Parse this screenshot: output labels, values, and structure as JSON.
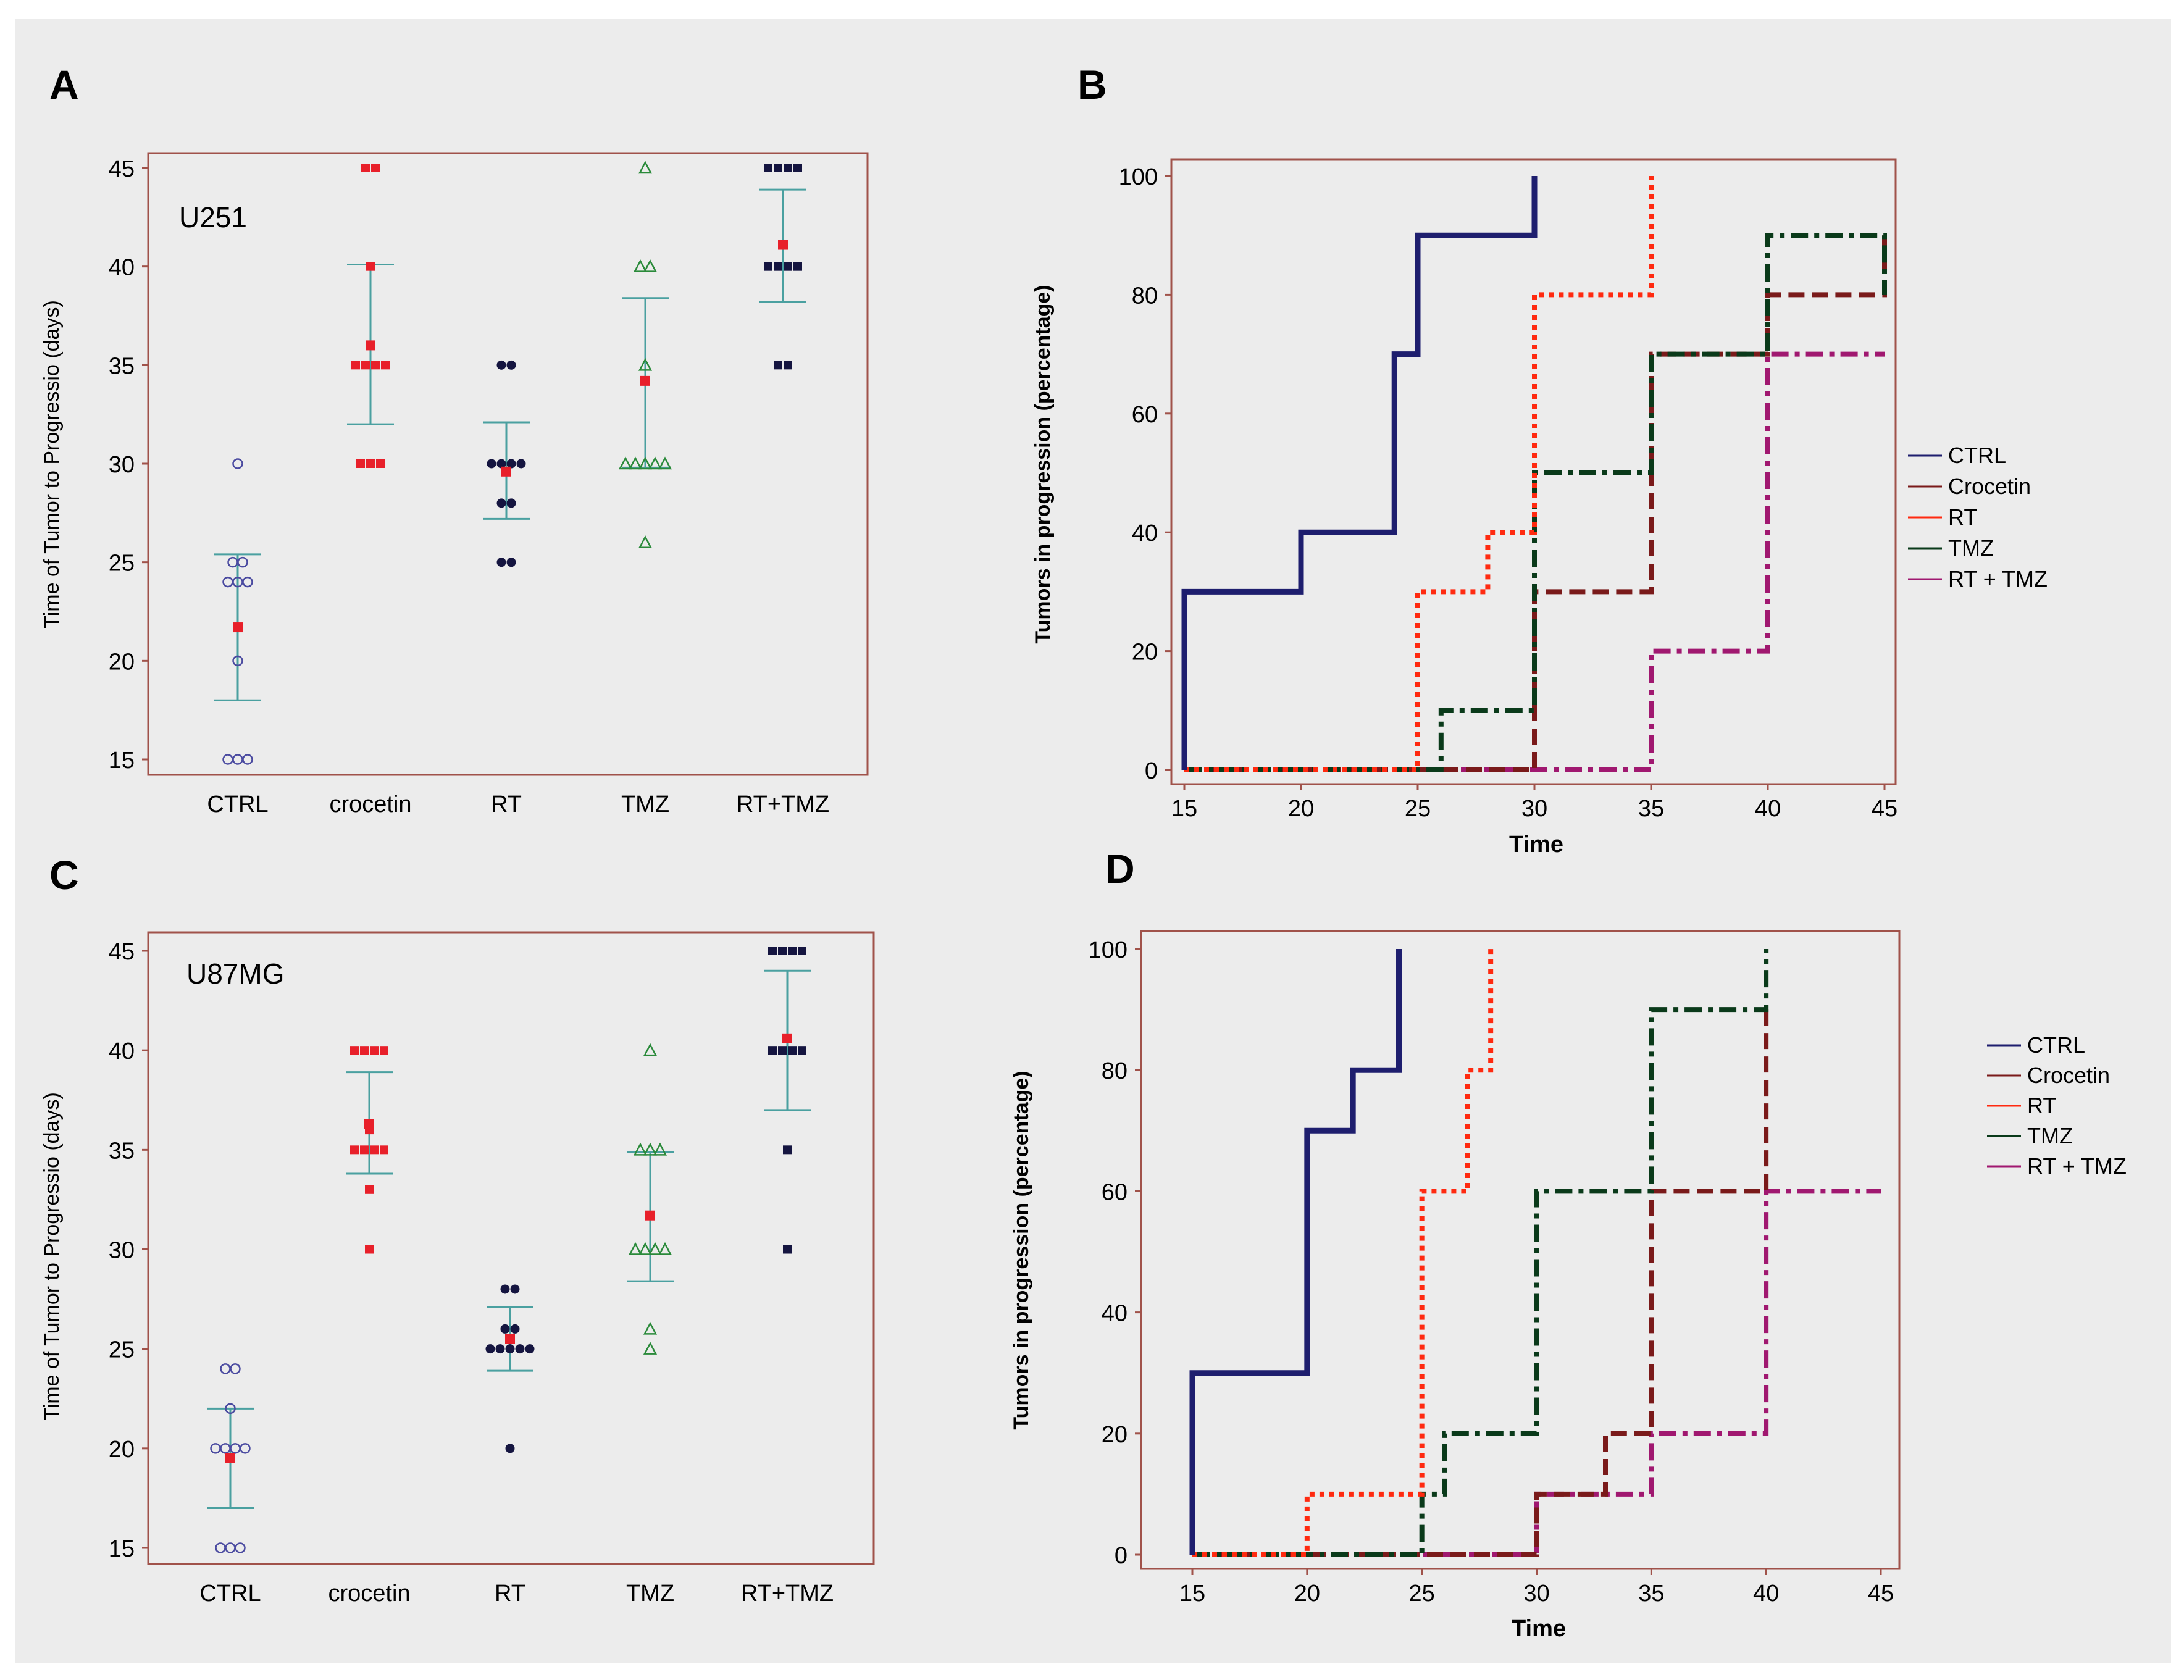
{
  "colors": {
    "background": "#ececec",
    "plot_border": "#a0524a",
    "errorbar": "#4aa0a0",
    "mean_marker": "#e8202a",
    "ctrl": "#1e1e6e",
    "crocetin": "#7a1a1a",
    "rt": "#ff2a10",
    "tmz": "#0a3a1a",
    "rt_tmz": "#a01870",
    "scatter_ctrl": "#4a4aa0",
    "scatter_crocetin": "#e8202a",
    "scatter_rt": "#151540",
    "scatter_tmz": "#2a8a3a",
    "scatter_rttmz": "#151540"
  },
  "panels": {
    "A": "A",
    "B": "B",
    "C": "C",
    "D": "D"
  },
  "chart_data": [
    {
      "id": "A",
      "type": "scatter",
      "label": "U251",
      "ylabel": "Time of Tumor to Progressio (days)",
      "xlabel": "",
      "categories": [
        "CTRL",
        "crocetin",
        "RT",
        "TMZ",
        "RT+TMZ"
      ],
      "ylim": [
        15,
        45
      ],
      "yticks": [
        15,
        20,
        25,
        30,
        35,
        40,
        45
      ],
      "groups": [
        {
          "name": "CTRL",
          "marker": "circle-open",
          "color": "#4a4aa0",
          "points": [
            15,
            15,
            15,
            20,
            24,
            24,
            24,
            25,
            25,
            30
          ],
          "mean": 21.7,
          "sd_low": 18.0,
          "sd_high": 25.4
        },
        {
          "name": "crocetin",
          "marker": "square",
          "color": "#e8202a",
          "points": [
            30,
            30,
            30,
            35,
            35,
            35,
            35,
            36,
            40,
            45,
            45
          ],
          "mean": 36.0,
          "sd_low": 32.0,
          "sd_high": 40.1
        },
        {
          "name": "RT",
          "marker": "circle",
          "color": "#151540",
          "points": [
            25,
            25,
            28,
            28,
            30,
            30,
            30,
            30,
            35,
            35
          ],
          "mean": 29.6,
          "sd_low": 27.2,
          "sd_high": 32.1
        },
        {
          "name": "TMZ",
          "marker": "triangle-open",
          "color": "#2a8a3a",
          "points": [
            26,
            30,
            30,
            30,
            30,
            30,
            35,
            40,
            40,
            45
          ],
          "mean": 34.2,
          "sd_low": 29.8,
          "sd_high": 38.4
        },
        {
          "name": "RT+TMZ",
          "marker": "square",
          "color": "#151540",
          "points": [
            35,
            35,
            40,
            40,
            40,
            40,
            45,
            45,
            45,
            45
          ],
          "mean": 41.1,
          "sd_low": 38.2,
          "sd_high": 43.9
        }
      ]
    },
    {
      "id": "B",
      "type": "line",
      "xlabel": "Time",
      "ylabel": "Tumors in progression (percentage)",
      "xlim": [
        15,
        45
      ],
      "ylim": [
        0,
        100
      ],
      "xticks": [
        15,
        20,
        25,
        30,
        35,
        40,
        45
      ],
      "yticks": [
        0,
        20,
        40,
        60,
        80,
        100
      ],
      "series": [
        {
          "name": "CTRL",
          "style": "solid",
          "color": "#1e1e6e",
          "x": [
            15,
            15,
            20,
            20,
            24,
            24,
            25,
            25,
            30,
            30
          ],
          "y": [
            0,
            30,
            30,
            40,
            40,
            70,
            70,
            90,
            90,
            100
          ]
        },
        {
          "name": "Crocetin",
          "style": "dash",
          "color": "#7a1a1a",
          "x": [
            15,
            30,
            30,
            35,
            35,
            40,
            40,
            45,
            45
          ],
          "y": [
            0,
            0,
            30,
            30,
            70,
            70,
            80,
            80,
            90
          ]
        },
        {
          "name": "RT",
          "style": "dot",
          "color": "#ff2a10",
          "x": [
            15,
            25,
            25,
            28,
            28,
            30,
            30,
            35,
            35
          ],
          "y": [
            0,
            0,
            30,
            30,
            40,
            40,
            80,
            80,
            100
          ]
        },
        {
          "name": "TMZ",
          "style": "dashdot",
          "color": "#0a3a1a",
          "x": [
            15,
            26,
            26,
            30,
            30,
            35,
            35,
            40,
            40,
            45,
            45
          ],
          "y": [
            0,
            0,
            10,
            10,
            50,
            50,
            70,
            70,
            90,
            90,
            80
          ]
        },
        {
          "name": "RT + TMZ",
          "style": "dashdot",
          "color": "#a01870",
          "x": [
            15,
            35,
            35,
            40,
            40,
            45
          ],
          "y": [
            0,
            0,
            20,
            20,
            70,
            70
          ]
        }
      ],
      "legend": [
        "CTRL",
        "Crocetin",
        "RT",
        "TMZ",
        "RT + TMZ"
      ]
    },
    {
      "id": "C",
      "type": "scatter",
      "label": "U87MG",
      "ylabel": "Time of Tumor to Progressio (days)",
      "xlabel": "",
      "categories": [
        "CTRL",
        "crocetin",
        "RT",
        "TMZ",
        "RT+TMZ"
      ],
      "ylim": [
        15,
        45
      ],
      "yticks": [
        15,
        20,
        25,
        30,
        35,
        40,
        45
      ],
      "groups": [
        {
          "name": "CTRL",
          "marker": "circle-open",
          "color": "#4a4aa0",
          "points": [
            15,
            15,
            15,
            20,
            20,
            20,
            20,
            22,
            24,
            24
          ],
          "mean": 19.5,
          "sd_low": 17.0,
          "sd_high": 22.0
        },
        {
          "name": "crocetin",
          "marker": "square",
          "color": "#e8202a",
          "points": [
            30,
            33,
            35,
            35,
            35,
            35,
            36,
            40,
            40,
            40,
            40
          ],
          "mean": 36.3,
          "sd_low": 33.8,
          "sd_high": 38.9
        },
        {
          "name": "RT",
          "marker": "circle",
          "color": "#151540",
          "points": [
            20,
            25,
            25,
            25,
            25,
            25,
            26,
            26,
            28,
            28
          ],
          "mean": 25.5,
          "sd_low": 23.9,
          "sd_high": 27.1
        },
        {
          "name": "TMZ",
          "marker": "triangle-open",
          "color": "#2a8a3a",
          "points": [
            25,
            26,
            30,
            30,
            30,
            30,
            35,
            35,
            35,
            40
          ],
          "mean": 31.7,
          "sd_low": 28.4,
          "sd_high": 34.9
        },
        {
          "name": "RT+TMZ",
          "marker": "square",
          "color": "#151540",
          "points": [
            30,
            35,
            40,
            40,
            40,
            40,
            45,
            45,
            45,
            45
          ],
          "mean": 40.6,
          "sd_low": 37.0,
          "sd_high": 44.0
        }
      ]
    },
    {
      "id": "D",
      "type": "line",
      "xlabel": "Time",
      "ylabel": "Tumors in progression (percentage)",
      "xlim": [
        15,
        45
      ],
      "ylim": [
        0,
        100
      ],
      "xticks": [
        15,
        20,
        25,
        30,
        35,
        40,
        45
      ],
      "yticks": [
        0,
        20,
        40,
        60,
        80,
        100
      ],
      "series": [
        {
          "name": "CTRL",
          "style": "solid",
          "color": "#1e1e6e",
          "x": [
            15,
            15,
            20,
            20,
            22,
            22,
            24,
            24
          ],
          "y": [
            0,
            30,
            30,
            70,
            70,
            80,
            80,
            100
          ]
        },
        {
          "name": "Crocetin",
          "style": "dash",
          "color": "#7a1a1a",
          "x": [
            15,
            30,
            30,
            33,
            33,
            35,
            35,
            40,
            40
          ],
          "y": [
            0,
            0,
            10,
            10,
            20,
            20,
            60,
            60,
            90
          ]
        },
        {
          "name": "RT",
          "style": "dot",
          "color": "#ff2a10",
          "x": [
            15,
            20,
            20,
            25,
            25,
            27,
            27,
            28,
            28
          ],
          "y": [
            0,
            0,
            10,
            10,
            60,
            60,
            80,
            80,
            100
          ]
        },
        {
          "name": "TMZ",
          "style": "dashdot",
          "color": "#0a3a1a",
          "x": [
            15,
            25,
            25,
            26,
            26,
            30,
            30,
            35,
            35,
            40,
            40
          ],
          "y": [
            0,
            0,
            10,
            10,
            20,
            20,
            60,
            60,
            90,
            90,
            100
          ]
        },
        {
          "name": "RT + TMZ",
          "style": "dashdot",
          "color": "#a01870",
          "x": [
            15,
            30,
            30,
            35,
            35,
            40,
            40,
            45
          ],
          "y": [
            0,
            0,
            10,
            10,
            20,
            20,
            60,
            60
          ]
        }
      ],
      "legend": [
        "CTRL",
        "Crocetin",
        "RT",
        "TMZ",
        "RT + TMZ"
      ]
    }
  ]
}
